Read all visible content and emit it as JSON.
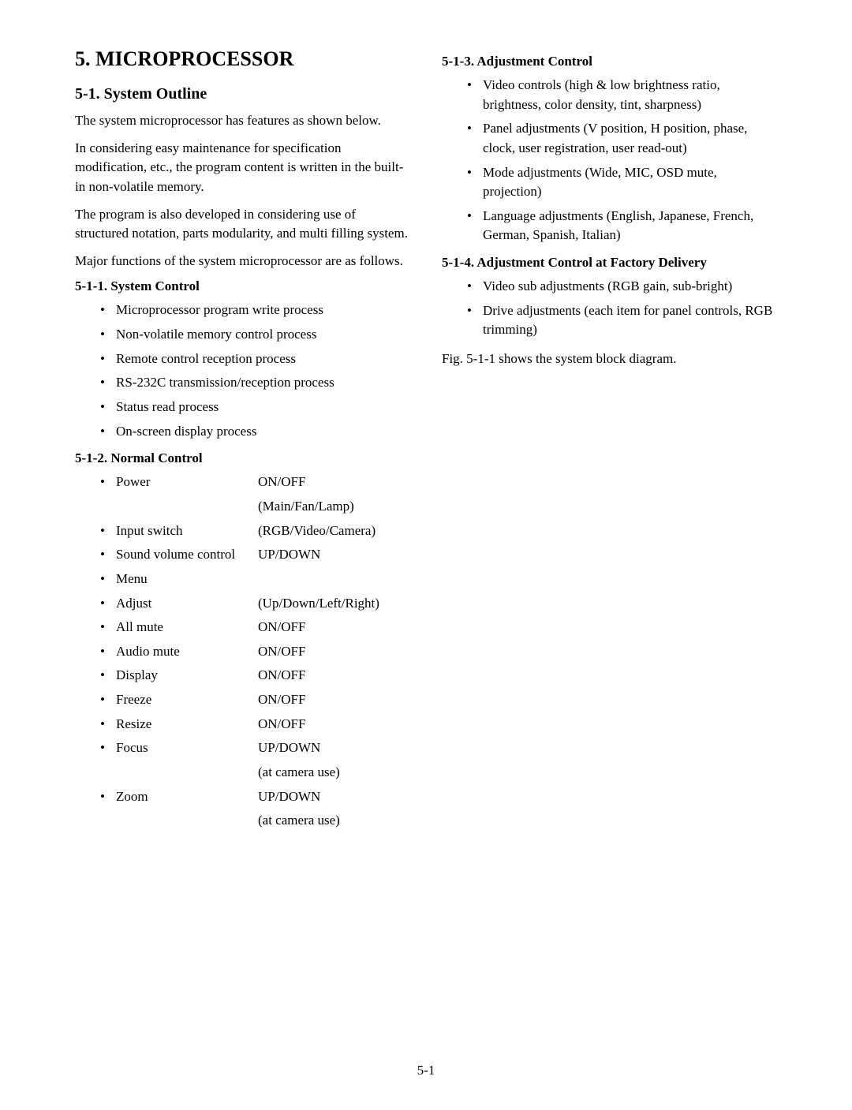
{
  "heading1": "5.  MICROPROCESSOR",
  "heading2": "5-1.   System Outline",
  "intro_p1": "The system microprocessor has features as shown below.",
  "intro_p2": "In considering easy maintenance for specification modification, etc., the program content is written in the built-in non-volatile memory.",
  "intro_p3": " The program is also developed in considering use of structured notation, parts modularity, and multi filling system.",
  "intro_p4": "Major functions of the system microprocessor are as follows.",
  "section_511": {
    "title": "5-1-1. System Control",
    "items": [
      "Microprocessor program write process",
      "Non-volatile memory control process",
      "Remote control reception process",
      "RS-232C transmission/reception process",
      "Status read process",
      "On-screen display process"
    ]
  },
  "section_512": {
    "title": "5-1-2. Normal Control",
    "items": [
      {
        "label": "Power",
        "value": "ON/OFF",
        "cont": "(Main/Fan/Lamp)"
      },
      {
        "label": "Input switch",
        "value": "(RGB/Video/Camera)"
      },
      {
        "label": "Sound volume control",
        "value": "UP/DOWN"
      },
      {
        "label": "Menu",
        "value": ""
      },
      {
        "label": "Adjust",
        "value": "(Up/Down/Left/Right)"
      },
      {
        "label": "All mute",
        "value": "ON/OFF"
      },
      {
        "label": "Audio mute",
        "value": "ON/OFF"
      },
      {
        "label": "Display",
        "value": "ON/OFF"
      },
      {
        "label": "Freeze",
        "value": "ON/OFF"
      },
      {
        "label": "Resize",
        "value": "ON/OFF"
      },
      {
        "label": "Focus",
        "value": "UP/DOWN",
        "cont": "(at camera use)"
      },
      {
        "label": "Zoom",
        "value": "UP/DOWN",
        "cont": "(at camera use)"
      }
    ]
  },
  "section_513": {
    "title": "5-1-3. Adjustment Control",
    "items": [
      "Video controls (high & low brightness ratio, brightness, color density, tint, sharpness)",
      "Panel adjustments (V position, H position, phase, clock, user registration, user read-out)",
      "Mode adjustments (Wide, MIC, OSD mute, projection)",
      "Language adjustments (English, Japanese, French, German, Spanish, Italian)"
    ]
  },
  "section_514": {
    "title": "5-1-4. Adjustment Control at Factory Delivery",
    "items": [
      "Video sub adjustments (RGB gain, sub-bright)",
      "Drive adjustments (each item for panel controls, RGB trimming)"
    ]
  },
  "closing": "Fig. 5-1-1 shows the system block diagram.",
  "page_number": "5-1"
}
